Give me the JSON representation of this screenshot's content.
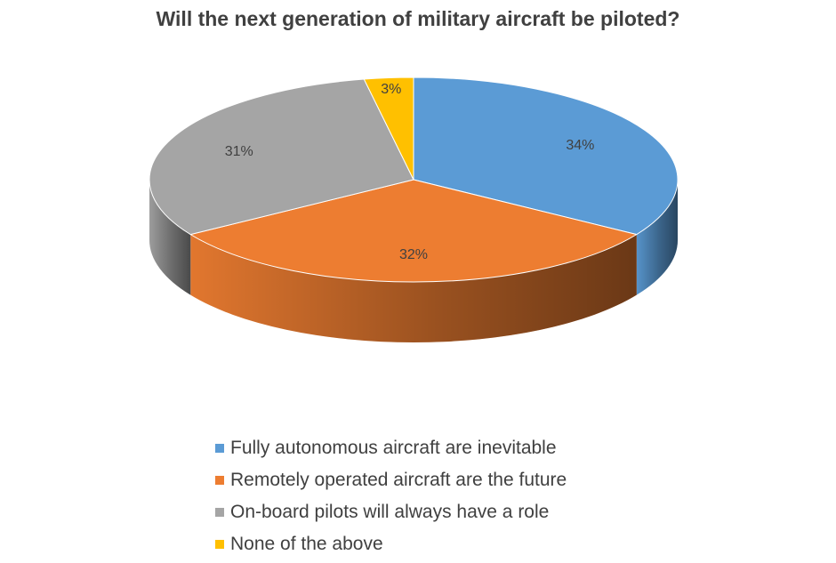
{
  "chart_data": {
    "type": "pie",
    "title": "Will the next generation of military aircraft be piloted?",
    "slices": [
      {
        "label": "Fully autonomous aircraft are inevitable",
        "value": 34,
        "value_label": "34%",
        "color": "#5B9BD5",
        "side_color": "#233A52"
      },
      {
        "label": "Remotely operated aircraft are the future",
        "value": 32,
        "value_label": "32%",
        "color": "#ED7D31",
        "side_color": "#7A3A12"
      },
      {
        "label": "On-board pilots will always have a role",
        "value": 31,
        "value_label": "31%",
        "color": "#A5A5A5",
        "side_color": "#6E6E6E"
      },
      {
        "label": "None of the above",
        "value": 3,
        "value_label": "3%",
        "color": "#FFC000",
        "side_color": "#8A6A00"
      }
    ],
    "legend_position": "bottom",
    "style": "3d"
  }
}
